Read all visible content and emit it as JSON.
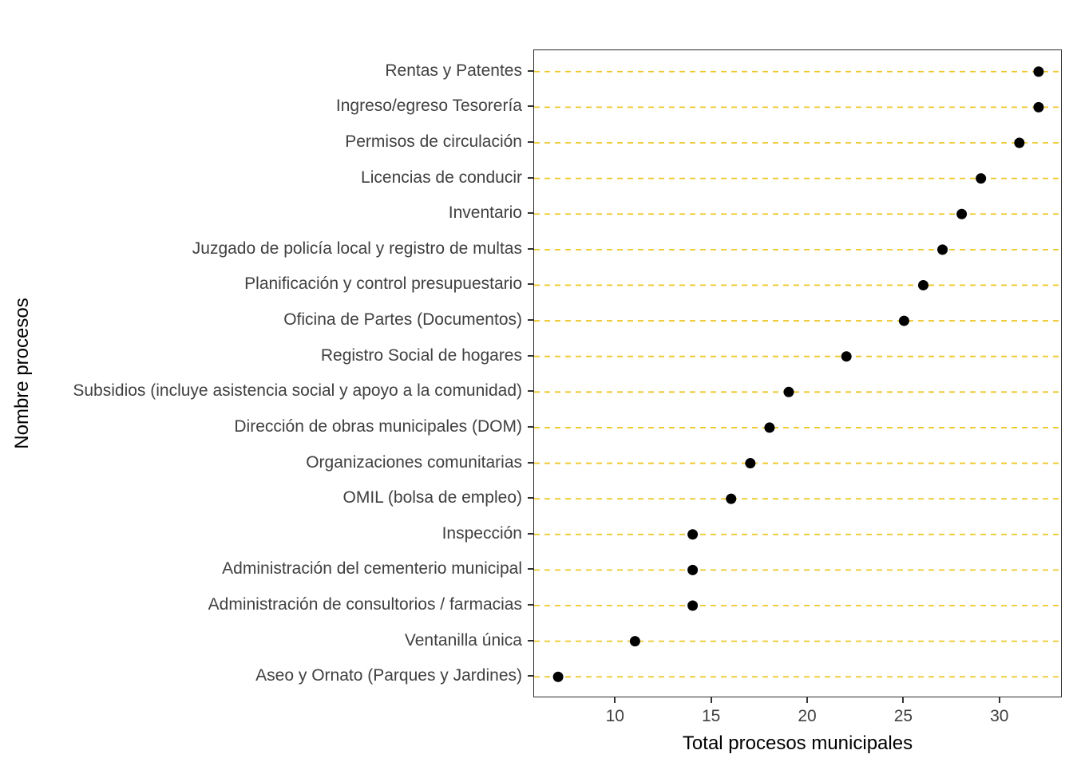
{
  "chart_data": {
    "type": "scatter",
    "subtype": "cleveland-dot-plot",
    "title": "",
    "xlabel": "Total procesos municipales",
    "ylabel": "Nombre procesos",
    "x_ticks": [
      10,
      15,
      20,
      25,
      30
    ],
    "xlim": [
      5.75,
      33.25
    ],
    "grid": "horizontal dashed lines per category, no vertical gridlines",
    "legend": "none",
    "categories": [
      "Rentas y Patentes",
      "Ingreso/egreso Tesorería",
      "Permisos de circulación",
      "Licencias de conducir",
      "Inventario",
      "Juzgado de policía local y registro de multas",
      "Planificación y control presupuestario",
      "Oficina de Partes (Documentos)",
      "Registro Social de hogares",
      "Subsidios (incluye asistencia social y apoyo a la comunidad)",
      "Dirección de obras municipales (DOM)",
      "Organizaciones comunitarias",
      "OMIL (bolsa de empleo)",
      "Inspección",
      "Administración del cementerio municipal",
      "Administración de consultorios / farmacias",
      "Ventanilla única",
      "Aseo y Ornato (Parques y Jardines)"
    ],
    "values": [
      32,
      32,
      31,
      29,
      28,
      27,
      26,
      25,
      22,
      19,
      18,
      17,
      16,
      14,
      14,
      14,
      11,
      7
    ]
  },
  "style": {
    "grid_color": "#EEC829",
    "point_color": "#000000",
    "panel_border_color": "#2B2B2B",
    "axis_text_color": "#404040",
    "axis_title_color": "#000000",
    "tick_color": "#333333",
    "background": "#FFFFFF"
  }
}
